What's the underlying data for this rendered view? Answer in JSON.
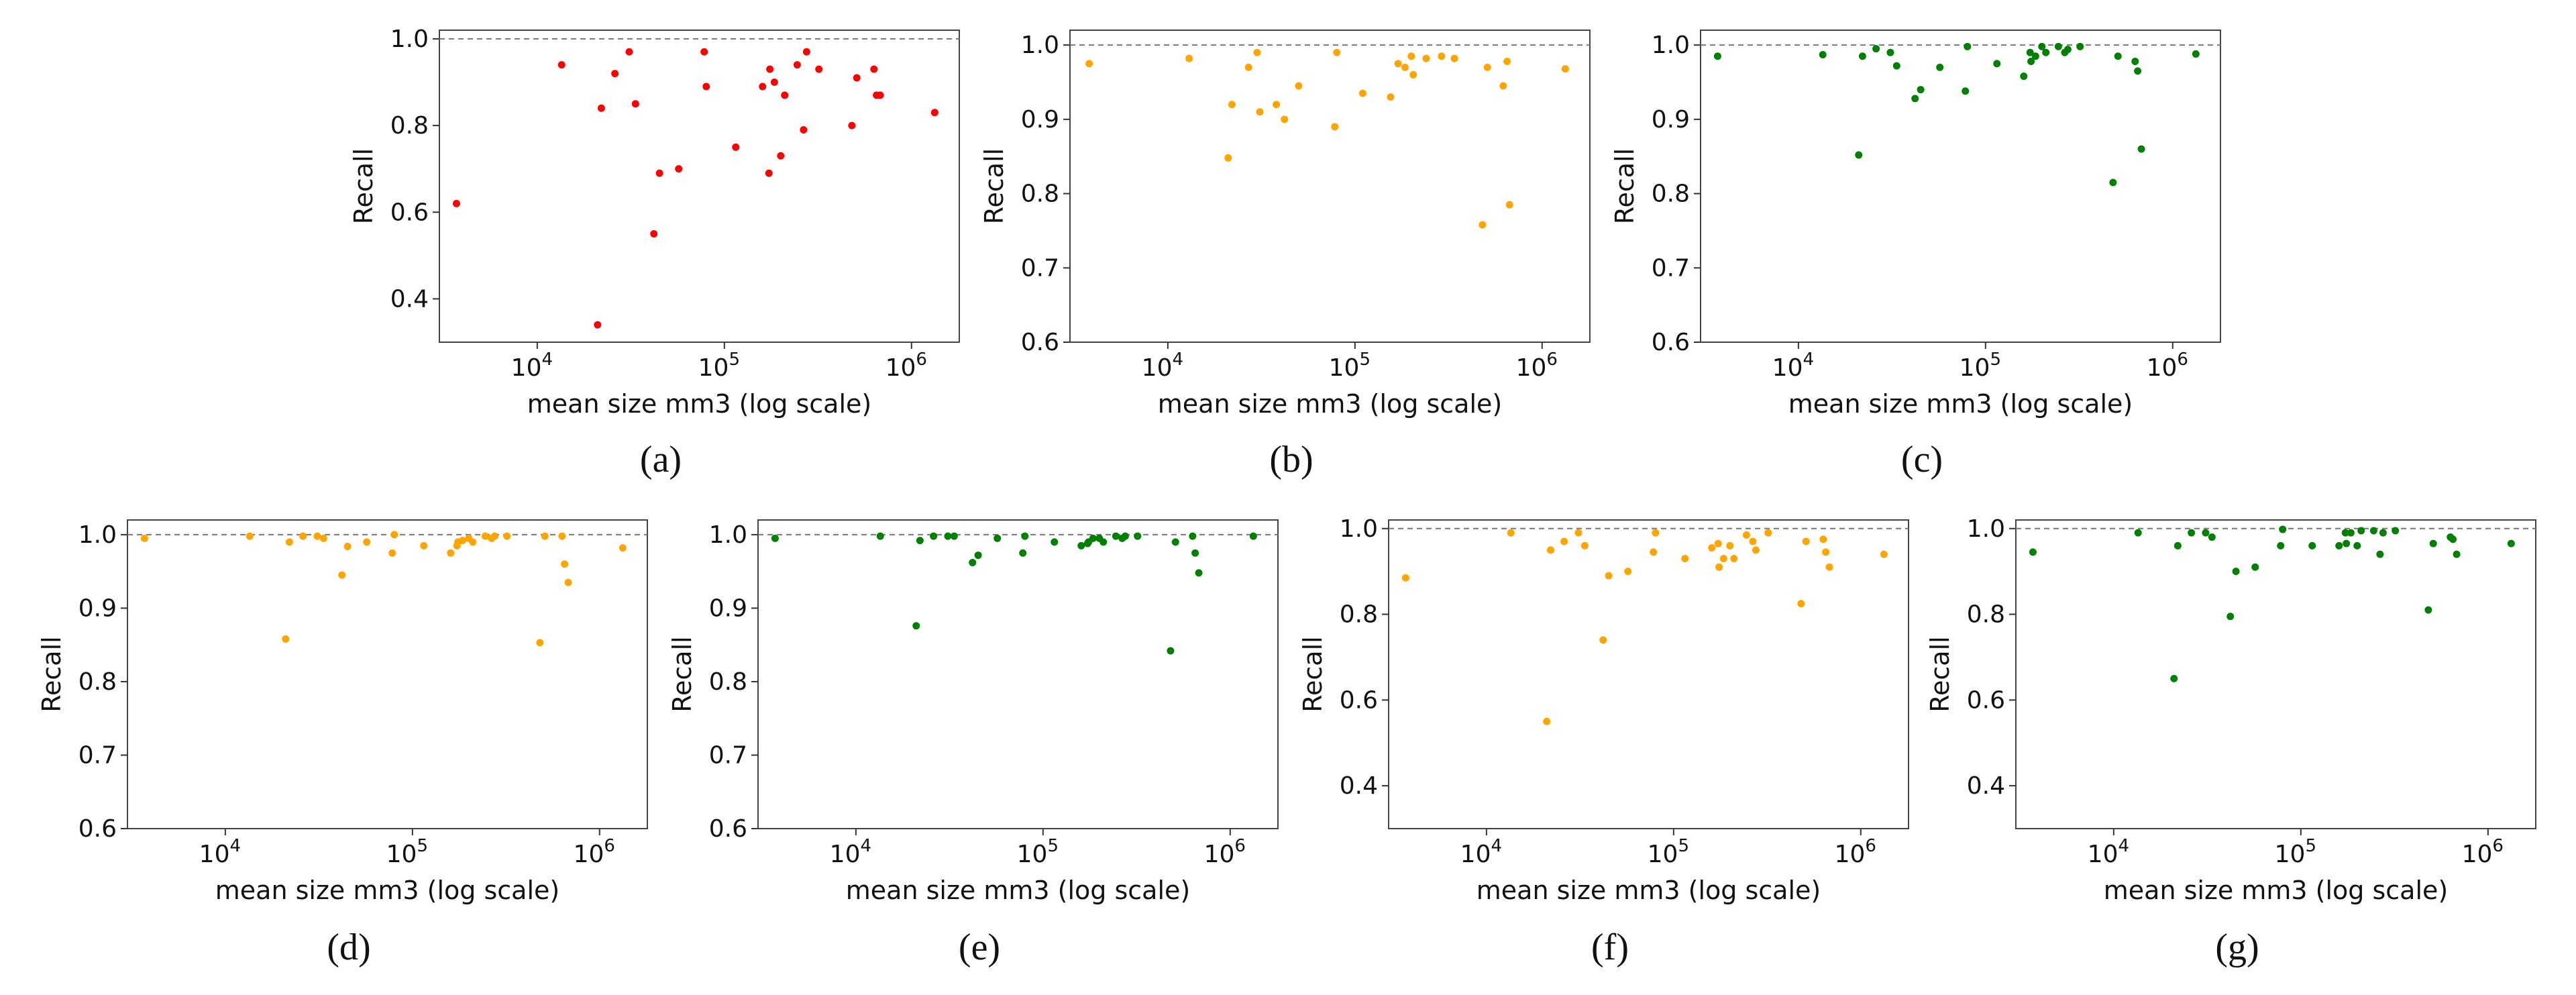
{
  "chart_data": [
    {
      "type": "scatter",
      "panel_label": "(a)",
      "color": "#ff0000",
      "xlabel": "mean size mm3 (log scale)",
      "ylabel": "Recall",
      "xscale": "log",
      "xlim": [
        3000,
        1800000
      ],
      "ylim": [
        0.3,
        1.02
      ],
      "yticks": [
        0.4,
        0.6,
        0.8,
        1.0
      ],
      "ytick_labels": [
        "0.4",
        "0.6",
        "0.8",
        "1.0"
      ],
      "xticks": [
        10000,
        100000,
        1000000
      ],
      "xtick_labels": [
        "10",
        "10",
        "10"
      ],
      "xtick_exponents": [
        "4",
        "5",
        "6"
      ],
      "reference_line": 1.0,
      "grid": false,
      "x": [
        3700,
        13500,
        21000,
        22000,
        26000,
        31000,
        33500,
        42000,
        45000,
        57000,
        78000,
        80000,
        115000,
        160000,
        173000,
        175000,
        185000,
        200000,
        210000,
        245000,
        265000,
        275000,
        320000,
        480000,
        510000,
        630000,
        650000,
        680000,
        1330000
      ],
      "y": [
        0.62,
        0.94,
        0.34,
        0.84,
        0.92,
        0.97,
        0.85,
        0.55,
        0.69,
        0.7,
        0.97,
        0.89,
        0.75,
        0.89,
        0.69,
        0.93,
        0.9,
        0.73,
        0.87,
        0.94,
        0.79,
        0.97,
        0.93,
        0.8,
        0.91,
        0.93,
        0.87,
        0.87,
        0.83
      ]
    },
    {
      "type": "scatter",
      "panel_label": "(b)",
      "color": "#ffa500",
      "xlabel": "mean size mm3 (log scale)",
      "ylabel": "Recall",
      "xscale": "log",
      "xlim": [
        3000,
        1800000
      ],
      "ylim": [
        0.6,
        1.02
      ],
      "yticks": [
        0.6,
        0.7,
        0.8,
        0.9,
        1.0
      ],
      "ytick_labels": [
        "0.6",
        "0.7",
        "0.8",
        "0.9",
        "1.0"
      ],
      "xticks": [
        10000,
        100000,
        1000000
      ],
      "xtick_labels": [
        "10",
        "10",
        "10"
      ],
      "xtick_exponents": [
        "4",
        "5",
        "6"
      ],
      "reference_line": 1.0,
      "grid": false,
      "x": [
        3800,
        13000,
        21000,
        22000,
        27000,
        30000,
        31000,
        38000,
        42000,
        50000,
        78000,
        80000,
        110000,
        155000,
        170000,
        185000,
        200000,
        205000,
        240000,
        290000,
        340000,
        480000,
        510000,
        620000,
        650000,
        670000,
        1330000
      ],
      "y": [
        0.975,
        0.982,
        0.848,
        0.92,
        0.97,
        0.99,
        0.91,
        0.92,
        0.9,
        0.945,
        0.89,
        0.99,
        0.935,
        0.93,
        0.975,
        0.97,
        0.985,
        0.96,
        0.982,
        0.985,
        0.982,
        0.758,
        0.97,
        0.945,
        0.978,
        0.785,
        0.968
      ]
    },
    {
      "type": "scatter",
      "panel_label": "(c)",
      "color": "#008000",
      "xlabel": "mean size mm3 (log scale)",
      "ylabel": "Recall",
      "xscale": "log",
      "xlim": [
        3000,
        1800000
      ],
      "ylim": [
        0.6,
        1.02
      ],
      "yticks": [
        0.6,
        0.7,
        0.8,
        0.9,
        1.0
      ],
      "ytick_labels": [
        "0.6",
        "0.7",
        "0.8",
        "0.9",
        "1.0"
      ],
      "xticks": [
        10000,
        100000,
        1000000
      ],
      "xtick_labels": [
        "10",
        "10",
        "10"
      ],
      "xtick_exponents": [
        "4",
        "5",
        "6"
      ],
      "reference_line": 1.0,
      "grid": false,
      "x": [
        3700,
        13500,
        21000,
        22000,
        26000,
        31000,
        33500,
        42000,
        45000,
        57000,
        78000,
        80000,
        115000,
        160000,
        173000,
        175000,
        185000,
        200000,
        210000,
        245000,
        265000,
        275000,
        320000,
        480000,
        510000,
        630000,
        650000,
        680000,
        1330000
      ],
      "y": [
        0.985,
        0.987,
        0.852,
        0.985,
        0.995,
        0.99,
        0.972,
        0.928,
        0.94,
        0.97,
        0.938,
        0.998,
        0.975,
        0.958,
        0.99,
        0.978,
        0.985,
        0.998,
        0.99,
        0.998,
        0.99,
        0.994,
        0.998,
        0.815,
        0.985,
        0.978,
        0.965,
        0.86,
        0.988
      ]
    },
    {
      "type": "scatter",
      "panel_label": "(d)",
      "color": "#ffa500",
      "xlabel": "mean size mm3 (log scale)",
      "ylabel": "Recall",
      "xscale": "log",
      "xlim": [
        3000,
        1800000
      ],
      "ylim": [
        0.6,
        1.02
      ],
      "yticks": [
        0.6,
        0.7,
        0.8,
        0.9,
        1.0
      ],
      "ytick_labels": [
        "0.6",
        "0.7",
        "0.8",
        "0.9",
        "1.0"
      ],
      "xticks": [
        10000,
        100000,
        1000000
      ],
      "xtick_labels": [
        "10",
        "10",
        "10"
      ],
      "xtick_exponents": [
        "4",
        "5",
        "6"
      ],
      "reference_line": 1.0,
      "grid": false,
      "x": [
        3700,
        13500,
        21000,
        22000,
        26000,
        31000,
        33500,
        42000,
        45000,
        57000,
        78000,
        80000,
        115000,
        160000,
        173000,
        175000,
        185000,
        200000,
        210000,
        245000,
        265000,
        275000,
        320000,
        480000,
        510000,
        630000,
        650000,
        680000,
        1330000
      ],
      "y": [
        0.995,
        0.998,
        0.858,
        0.99,
        0.998,
        0.998,
        0.995,
        0.945,
        0.984,
        0.99,
        0.975,
        1.0,
        0.985,
        0.975,
        0.985,
        0.99,
        0.992,
        0.995,
        0.99,
        0.998,
        0.995,
        0.998,
        0.998,
        0.853,
        0.998,
        0.998,
        0.96,
        0.935,
        0.982
      ]
    },
    {
      "type": "scatter",
      "panel_label": "(e)",
      "color": "#008000",
      "xlabel": "mean size mm3 (log scale)",
      "ylabel": "Recall",
      "xscale": "log",
      "xlim": [
        3000,
        1800000
      ],
      "ylim": [
        0.6,
        1.02
      ],
      "yticks": [
        0.6,
        0.7,
        0.8,
        0.9,
        1.0
      ],
      "ytick_labels": [
        "0.6",
        "0.7",
        "0.8",
        "0.9",
        "1.0"
      ],
      "xticks": [
        10000,
        100000,
        1000000
      ],
      "xtick_labels": [
        "10",
        "10",
        "10"
      ],
      "xtick_exponents": [
        "4",
        "5",
        "6"
      ],
      "reference_line": 1.0,
      "grid": false,
      "x": [
        3700,
        13500,
        21000,
        22000,
        26000,
        31000,
        33500,
        42000,
        45000,
        57000,
        78000,
        80000,
        115000,
        160000,
        173000,
        175000,
        185000,
        200000,
        210000,
        245000,
        265000,
        275000,
        320000,
        480000,
        510000,
        630000,
        650000,
        680000,
        1330000
      ],
      "y": [
        0.995,
        0.998,
        0.876,
        0.992,
        0.998,
        0.998,
        0.998,
        0.962,
        0.972,
        0.995,
        0.975,
        0.998,
        0.99,
        0.985,
        0.988,
        0.99,
        0.995,
        0.995,
        0.99,
        0.998,
        0.995,
        0.998,
        0.998,
        0.842,
        0.99,
        0.998,
        0.975,
        0.948,
        0.998
      ]
    },
    {
      "type": "scatter",
      "panel_label": "(f)",
      "color": "#ffa500",
      "xlabel": "mean size mm3 (log scale)",
      "ylabel": "Recall",
      "xscale": "log",
      "xlim": [
        3000,
        1800000
      ],
      "ylim": [
        0.3,
        1.02
      ],
      "yticks": [
        0.4,
        0.6,
        0.8,
        1.0
      ],
      "ytick_labels": [
        "0.4",
        "0.6",
        "0.8",
        "1.0"
      ],
      "xticks": [
        10000,
        100000,
        1000000
      ],
      "xtick_labels": [
        "10",
        "10",
        "10"
      ],
      "xtick_exponents": [
        "4",
        "5",
        "6"
      ],
      "reference_line": 1.0,
      "grid": false,
      "x": [
        3700,
        13500,
        21000,
        22000,
        26000,
        31000,
        33500,
        42000,
        45000,
        57000,
        78000,
        80000,
        115000,
        160000,
        173000,
        175000,
        185000,
        200000,
        210000,
        245000,
        265000,
        275000,
        320000,
        480000,
        510000,
        630000,
        650000,
        680000,
        1330000
      ],
      "y": [
        0.885,
        0.99,
        0.55,
        0.95,
        0.97,
        0.99,
        0.96,
        0.74,
        0.89,
        0.9,
        0.945,
        0.99,
        0.93,
        0.955,
        0.965,
        0.91,
        0.93,
        0.96,
        0.93,
        0.985,
        0.97,
        0.95,
        0.99,
        0.825,
        0.97,
        0.975,
        0.945,
        0.91,
        0.94
      ]
    },
    {
      "type": "scatter",
      "panel_label": "(g)",
      "color": "#008000",
      "xlabel": "mean size mm3 (log scale)",
      "ylabel": "Recall",
      "xscale": "log",
      "xlim": [
        3000,
        1800000
      ],
      "ylim": [
        0.3,
        1.02
      ],
      "yticks": [
        0.4,
        0.6,
        0.8,
        1.0
      ],
      "ytick_labels": [
        "0.4",
        "0.6",
        "0.8",
        "1.0"
      ],
      "xticks": [
        10000,
        100000,
        1000000
      ],
      "xtick_labels": [
        "10",
        "10",
        "10"
      ],
      "xtick_exponents": [
        "4",
        "5",
        "6"
      ],
      "reference_line": 1.0,
      "grid": false,
      "x": [
        3700,
        13500,
        21000,
        22000,
        26000,
        31000,
        33500,
        42000,
        45000,
        57000,
        78000,
        80000,
        115000,
        160000,
        173000,
        175000,
        185000,
        200000,
        210000,
        245000,
        265000,
        275000,
        320000,
        480000,
        510000,
        630000,
        650000,
        680000,
        1330000
      ],
      "y": [
        0.945,
        0.99,
        0.65,
        0.96,
        0.99,
        0.99,
        0.98,
        0.795,
        0.9,
        0.91,
        0.96,
        0.998,
        0.96,
        0.96,
        0.99,
        0.965,
        0.99,
        0.96,
        0.995,
        0.995,
        0.94,
        0.99,
        0.995,
        0.81,
        0.965,
        0.98,
        0.975,
        0.94,
        0.965
      ]
    }
  ]
}
